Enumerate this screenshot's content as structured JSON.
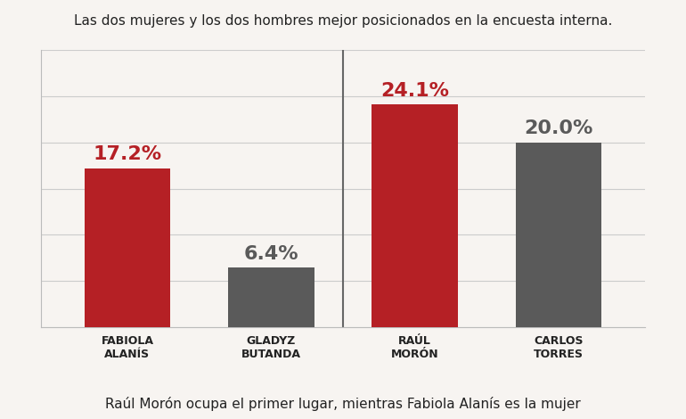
{
  "chart_data": {
    "type": "bar",
    "title": "Las dos mujeres y los dos hombres mejor posicionados en la encuesta interna.",
    "annotations": [
      "Raúl Morón ocupa el primer lugar, mientras Fabiola Alanís es la mujer"
    ],
    "categories": [
      "FABIOLA ALANÍS",
      "GLADYZ BUTANDA",
      "RAÚL MORÓN",
      "CARLOS TORRES"
    ],
    "values": [
      17.2,
      6.4,
      24.1,
      20.0
    ],
    "value_labels": [
      "17.2%",
      "6.4%",
      "24.1%",
      "20.0%"
    ],
    "colors": [
      "#b52025",
      "#5a5a5a",
      "#b52025",
      "#5a5a5a"
    ],
    "ylim": [
      0,
      30
    ],
    "yticks": [
      0,
      5,
      10,
      15,
      20,
      25,
      30
    ],
    "grid": true,
    "data_labels": true,
    "tick_labels": false
  }
}
